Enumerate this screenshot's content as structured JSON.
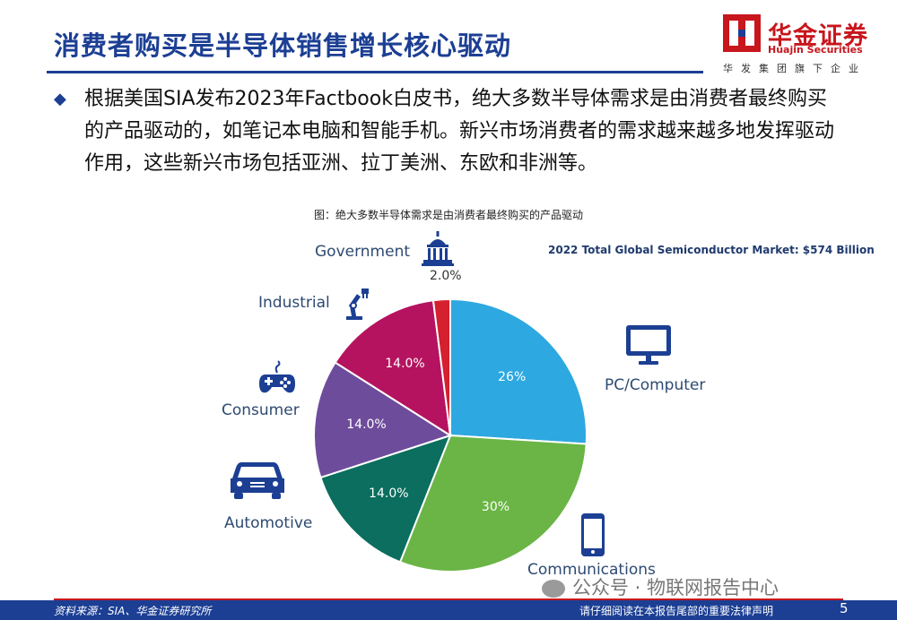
{
  "header": {
    "title": "消费者购买是半导体销售增长核心驱动",
    "logo_name": "华金证券",
    "logo_english": "Huajin Securities",
    "logo_subtitle": "华发集团旗下企业"
  },
  "bullet": {
    "text": "根据美国SIA发布2023年Factbook白皮书，绝大多数半导体需求是由消费者最终购买的产品驱动的，如笔记本电脑和智能手机。新兴市场消费者的需求越来越多地发挥驱动作用，这些新兴市场包括亚洲、拉丁美洲、东欧和非洲等。"
  },
  "figure": {
    "caption": "图：绝大多数半导体需求是由消费者最终购买的产品驱动",
    "market_label": "2022 Total Global Semiconductor Market: $574 Billion"
  },
  "chart_data": {
    "type": "pie",
    "title": "2022 Total Global Semiconductor Market: $574 Billion",
    "slices": [
      {
        "label": "PC/Computer",
        "value": 26,
        "value_label": "26%",
        "color": "#2ea8e0",
        "icon": "monitor-icon"
      },
      {
        "label": "Communications",
        "value": 30,
        "value_label": "30%",
        "color": "#6ab545",
        "icon": "smartphone-icon"
      },
      {
        "label": "Automotive",
        "value": 14,
        "value_label": "14.0%",
        "color": "#0b6e5e",
        "icon": "car-icon"
      },
      {
        "label": "Consumer",
        "value": 14,
        "value_label": "14.0%",
        "color": "#6e4c9c",
        "icon": "gamepad-icon"
      },
      {
        "label": "Industrial",
        "value": 14,
        "value_label": "14.0%",
        "color": "#b5135f",
        "icon": "robot-arm-icon"
      },
      {
        "label": "Government",
        "value": 2,
        "value_label": "2.0%",
        "color": "#d4202f",
        "icon": "capitol-icon"
      }
    ],
    "start": "12 o'clock",
    "direction": "clockwise"
  },
  "watermark": "公众号 · 物联网报告中心",
  "footer": {
    "source": "资料来源：SIA、华金证券研究所",
    "disclaimer": "请仔细阅读在本报告尾部的重要法律声明",
    "page": "5"
  }
}
